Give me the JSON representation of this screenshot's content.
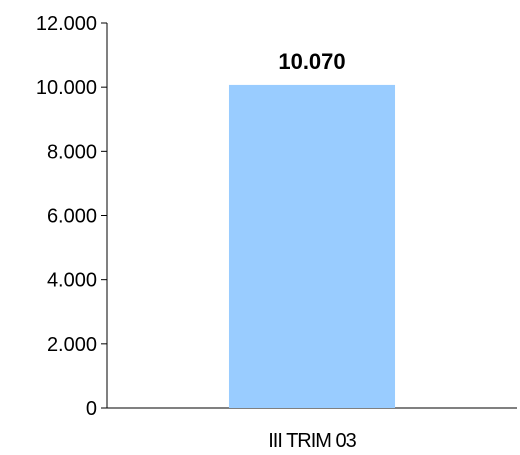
{
  "chart_data": {
    "type": "bar",
    "categories": [
      "III TRIM 03"
    ],
    "values": [
      10070
    ],
    "data_labels": [
      "10.070"
    ],
    "ylim": [
      0,
      12000
    ],
    "yticks": [
      0,
      2000,
      4000,
      6000,
      8000,
      10000,
      12000
    ],
    "ytick_labels": [
      "0",
      "2.000",
      "4.000",
      "6.000",
      "8.000",
      "10.000",
      "12.000"
    ],
    "title": "",
    "xlabel": "",
    "ylabel": "",
    "grid": false,
    "legend": "none",
    "colors": {
      "bar": "#99ccff",
      "axis": "#000000",
      "text": "#000000"
    }
  }
}
